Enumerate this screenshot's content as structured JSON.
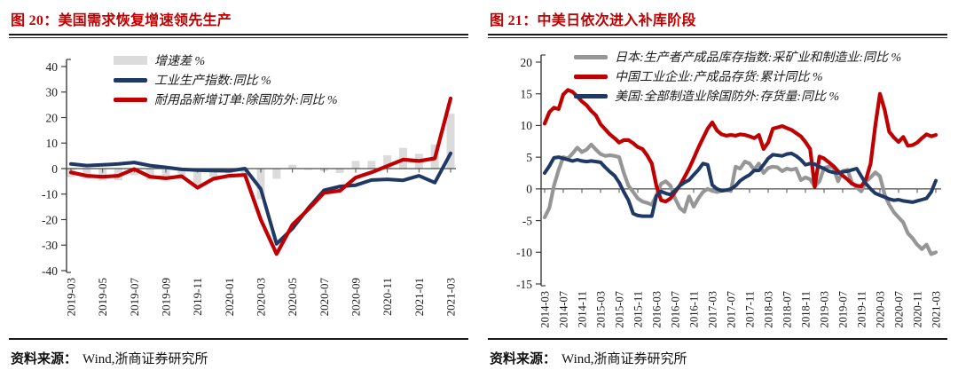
{
  "colors": {
    "title_red": "#C00000",
    "line_red": "#C00000",
    "line_navy": "#1F3864",
    "line_gray": "#969696",
    "bar_gray": "#DBDBDB",
    "axis": "#3d3d3d",
    "zero_line": "#4d4d4d",
    "tick_text": "#1a1a1a"
  },
  "figures": [
    {
      "title": "图 20：美国需求恢复增速领先生产",
      "source_label": "资料来源：",
      "source_value": "Wind,浙商证券研究所"
    },
    {
      "title": "图 21：中美日依次进入补库阶段",
      "source_label": "资料来源：",
      "source_value": "Wind,浙商证券研究所"
    }
  ],
  "chart_data": [
    {
      "type": "combo",
      "title": "图 20：美国需求恢复增速领先生产",
      "x_start": "2019-03",
      "x_end": "2021-03",
      "x_interval": "monthly",
      "x_tick_labels": [
        "2019-03",
        "2019-05",
        "2019-07",
        "2019-09",
        "2019-11",
        "2020-01",
        "2020-03",
        "2020-05",
        "2020-07",
        "2020-09",
        "2020-11",
        "2021-01",
        "2021-03"
      ],
      "y_ticks": [
        "40",
        "30",
        "20",
        "10",
        "0",
        "-10",
        "-20",
        "-30",
        "-40"
      ],
      "ylim": [
        -40,
        40
      ],
      "grid": false,
      "legend_position": "top",
      "series": [
        {
          "name": "增速差 %",
          "kind": "bar",
          "color": "#DBDBDB",
          "values": [
            -3.3,
            -4.0,
            -4.7,
            -4.6,
            -2.6,
            -4.4,
            -4.3,
            -2.7,
            -6.9,
            -3.2,
            -1.9,
            -2.5,
            -12.0,
            -4.0,
            1.5,
            -0.5,
            -1.0,
            -1.7,
            3.0,
            3.0,
            5.2,
            8.1,
            5.8,
            9.5,
            21.5
          ]
        },
        {
          "name": "工业生产指数:同比 %",
          "kind": "line",
          "color": "#1F3864",
          "width": 4,
          "values": [
            1.8,
            1.2,
            1.5,
            1.8,
            2.4,
            1.2,
            0.5,
            -0.3,
            -0.6,
            -0.8,
            -0.9,
            0.0,
            -8.0,
            -29.5,
            -23.5,
            -15.5,
            -8.5,
            -7.0,
            -6.5,
            -4.5,
            -4.2,
            -4.6,
            -2.8,
            -5.5,
            6.0
          ]
        },
        {
          "name": "耐用品新增订单:除国防外:同比 %",
          "kind": "line",
          "color": "#C00000",
          "width": 4.2,
          "values": [
            -1.5,
            -2.8,
            -3.2,
            -2.8,
            -0.2,
            -3.2,
            -3.8,
            -3.0,
            -7.5,
            -4.0,
            -2.8,
            -2.5,
            -20.0,
            -33.5,
            -22.0,
            -16.0,
            -9.5,
            -8.7,
            -3.5,
            -1.5,
            1.0,
            3.5,
            3.0,
            4.0,
            27.5
          ]
        }
      ]
    },
    {
      "type": "line",
      "title": "图 21：中美日依次进入补库阶段",
      "x_start": "2014-03",
      "x_end": "2021-03",
      "x_interval": "monthly",
      "x_tick_labels": [
        "2014-03",
        "2014-07",
        "2014-11",
        "2015-03",
        "2015-07",
        "2015-11",
        "2016-03",
        "2016-07",
        "2016-11",
        "2017-03",
        "2017-07",
        "2017-11",
        "2018-03",
        "2018-07",
        "2018-11",
        "2019-03",
        "2019-07",
        "2019-11",
        "2020-03",
        "2020-07",
        "2020-11",
        "2021-03"
      ],
      "y_ticks": [
        "20",
        "15",
        "10",
        "5",
        "0",
        "-5",
        "-10",
        "-15"
      ],
      "ylim": [
        -15,
        20
      ],
      "grid": false,
      "legend_position": "top",
      "series": [
        {
          "name": "日本:生产者产成品库存指数:采矿业和制造业:同比 %",
          "kind": "line",
          "color": "#969696",
          "width": 4.2,
          "values": [
            -4.5,
            -3.0,
            0.5,
            3.0,
            5.0,
            4.8,
            5.6,
            6.5,
            5.8,
            6.2,
            7.0,
            6.2,
            5.5,
            5.2,
            5.3,
            5.2,
            5.0,
            2.5,
            0.5,
            -0.5,
            -1.5,
            -2.0,
            -2.2,
            -2.5,
            -1.0,
            0.8,
            1.2,
            0.5,
            -1.5,
            -3.0,
            -3.6,
            -1.2,
            -2.8,
            -1.5,
            -0.5,
            0.0,
            -0.3,
            -0.5,
            -0.3,
            -0.2,
            -0.3,
            3.5,
            3.2,
            4.3,
            4.0,
            3.0,
            4.0,
            2.5,
            3.3,
            3.5,
            3.4,
            2.8,
            3.2,
            3.0,
            3.2,
            1.4,
            1.8,
            1.5,
            0.4,
            1.2,
            3.3,
            3.5,
            3.4,
            1.2,
            2.8,
            3.0,
            1.0,
            0.2,
            -0.4,
            1.2,
            1.8,
            2.6,
            2.0,
            -0.9,
            -2.5,
            -3.7,
            -4.5,
            -5.3,
            -7.0,
            -7.8,
            -8.8,
            -9.5,
            -8.8,
            -10.3,
            -10.0
          ]
        },
        {
          "name": "中国工业企业:产成品存货:累计同比 %",
          "kind": "line",
          "color": "#C00000",
          "width": 4.2,
          "values": [
            10.3,
            12.1,
            12.8,
            12.6,
            14.9,
            15.6,
            15.3,
            14.6,
            13.8,
            13.2,
            12.3,
            11.6,
            10.2,
            9.4,
            8.6,
            8.0,
            7.3,
            7.7,
            7.7,
            7.2,
            6.6,
            6.3,
            5.3,
            4.0,
            0.5,
            -1.8,
            -2.0,
            -1.5,
            -0.5,
            0.5,
            1.8,
            3.2,
            4.8,
            6.5,
            8.0,
            9.5,
            10.5,
            9.2,
            8.6,
            8.4,
            8.5,
            8.4,
            8.6,
            8.5,
            8.3,
            8.0,
            8.5,
            6.3,
            7.3,
            9.5,
            9.7,
            9.9,
            9.6,
            9.3,
            8.8,
            8.3,
            7.4,
            6.3,
            0.3,
            5.1,
            4.8,
            4.2,
            3.6,
            2.8,
            2.1,
            1.5,
            0.8,
            0.5,
            0.4,
            1.5,
            4.0,
            10.0,
            15.0,
            12.5,
            9.0,
            8.1,
            7.4,
            8.2,
            6.8,
            6.9,
            7.3,
            8.0,
            8.6,
            8.3,
            8.5
          ]
        },
        {
          "name": "美国:全部制造业除国防外:存货量:同比 %",
          "kind": "line",
          "color": "#1F3864",
          "width": 4,
          "values": [
            2.5,
            3.6,
            4.9,
            5.0,
            4.8,
            4.6,
            4.4,
            4.6,
            4.4,
            4.3,
            4.4,
            4.3,
            4.2,
            3.4,
            2.7,
            2.1,
            1.0,
            -0.5,
            -1.8,
            -3.9,
            -4.2,
            -4.3,
            -4.3,
            -4.3,
            -1.1,
            -0.4,
            -0.7,
            -0.9,
            -0.3,
            0.5,
            1.0,
            1.4,
            2.2,
            3.0,
            4.0,
            3.8,
            0.6,
            0.0,
            -0.3,
            -0.2,
            0.0,
            0.5,
            1.3,
            1.8,
            2.2,
            2.9,
            2.9,
            3.8,
            4.8,
            5.4,
            5.3,
            5.2,
            5.5,
            5.6,
            5.2,
            4.6,
            3.8,
            4.0,
            3.9,
            3.5,
            3.2,
            2.8,
            2.6,
            2.5,
            2.7,
            2.8,
            3.0,
            3.2,
            2.0,
            0.8,
            0.0,
            -0.7,
            -1.0,
            -1.3,
            -1.6,
            -1.8,
            -1.7,
            -1.9,
            -2.0,
            -2.1,
            -1.9,
            -1.7,
            -1.5,
            -0.5,
            1.3
          ]
        }
      ]
    }
  ]
}
